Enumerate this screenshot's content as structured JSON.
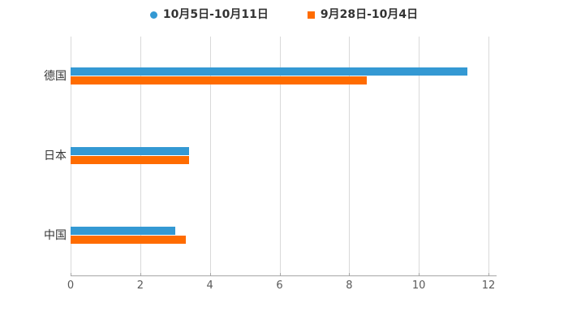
{
  "legend": {
    "items": [
      {
        "label": "10月5日-10月11日",
        "marker": "circle",
        "color": "#3499D3"
      },
      {
        "label": "9月28日-10月4日",
        "marker": "square",
        "color": "#FF6C00"
      }
    ]
  },
  "chart_data": {
    "type": "bar",
    "orientation": "horizontal",
    "title": "",
    "xlabel": "",
    "ylabel": "",
    "categories": [
      "德国",
      "日本",
      "中国"
    ],
    "series": [
      {
        "name": "10月5日-10月11日",
        "color": "#3499D3",
        "values": [
          11.4,
          3.4,
          3.0
        ]
      },
      {
        "name": "9月28日-10月4日",
        "color": "#FF6C00",
        "values": [
          8.5,
          3.4,
          3.3
        ]
      }
    ],
    "xlim": [
      0,
      12
    ],
    "xticks": [
      0,
      2,
      4,
      6,
      8,
      10,
      12
    ],
    "grid": true,
    "legend_position": "top-center"
  },
  "style": {
    "grid_color": "#D9D9D9",
    "axis_color": "#A6A6A6",
    "tick_label_color": "#595959",
    "category_label_color": "#333333",
    "background": "#FFFFFF"
  }
}
